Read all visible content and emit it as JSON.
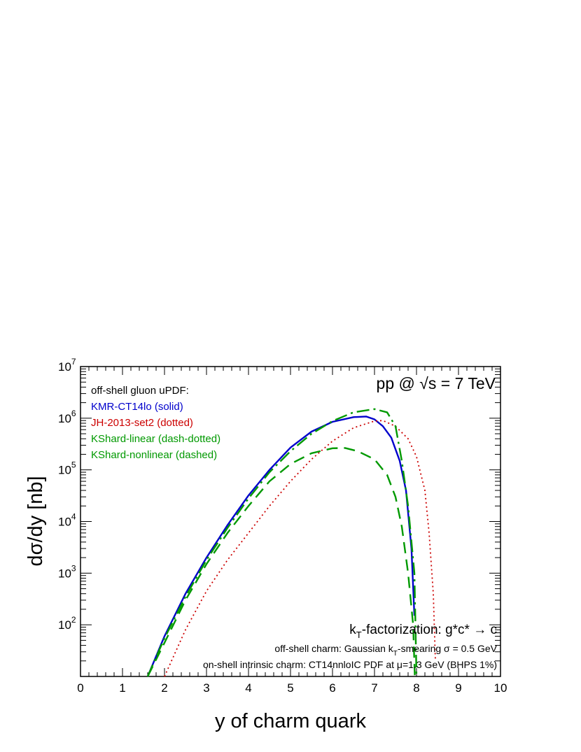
{
  "chart_data": {
    "type": "line",
    "xlabel": "y of charm quark",
    "ylabel": "dσ/dy   [nb]",
    "xlim": [
      0,
      10
    ],
    "ylim": [
      10,
      10000000
    ],
    "y_scale": "log",
    "x_ticks": [
      "0",
      "1",
      "2",
      "3",
      "4",
      "5",
      "6",
      "7",
      "8",
      "9",
      "10"
    ],
    "y_ticks": [
      {
        "base": "10",
        "exp": "2",
        "value": 100
      },
      {
        "base": "10",
        "exp": "3",
        "value": 1000
      },
      {
        "base": "10",
        "exp": "4",
        "value": 10000
      },
      {
        "base": "10",
        "exp": "5",
        "value": 100000
      },
      {
        "base": "10",
        "exp": "6",
        "value": 1000000
      },
      {
        "base": "10",
        "exp": "7",
        "value": 10000000
      }
    ],
    "legend_title": "off-shell gluon uPDF:",
    "series": [
      {
        "name": "KMR-CT14lo (solid)",
        "color": "#0000cc",
        "dash": "solid",
        "points": [
          [
            1.6,
            10
          ],
          [
            2.0,
            60
          ],
          [
            2.5,
            400
          ],
          [
            3.0,
            2000
          ],
          [
            3.5,
            8500
          ],
          [
            4.0,
            32000
          ],
          [
            4.5,
            100000
          ],
          [
            5.0,
            270000
          ],
          [
            5.5,
            550000
          ],
          [
            6.0,
            850000
          ],
          [
            6.5,
            1050000
          ],
          [
            6.8,
            1080000
          ],
          [
            7.0,
            950000
          ],
          [
            7.2,
            700000
          ],
          [
            7.4,
            420000
          ],
          [
            7.6,
            150000
          ],
          [
            7.75,
            40000
          ],
          [
            7.88,
            3000
          ],
          [
            7.95,
            150
          ]
        ]
      },
      {
        "name": "JH-2013-set2 (dotted)",
        "color": "#cc0000",
        "dash": "dotted",
        "points": [
          [
            2.0,
            10
          ],
          [
            2.5,
            80
          ],
          [
            3.0,
            450
          ],
          [
            3.5,
            1800
          ],
          [
            4.0,
            6000
          ],
          [
            4.5,
            20000
          ],
          [
            5.0,
            60000
          ],
          [
            5.5,
            160000
          ],
          [
            6.0,
            360000
          ],
          [
            6.5,
            650000
          ],
          [
            7.0,
            880000
          ],
          [
            7.2,
            900000
          ],
          [
            7.5,
            700000
          ],
          [
            7.8,
            400000
          ],
          [
            8.0,
            180000
          ],
          [
            8.2,
            40000
          ],
          [
            8.3,
            6000
          ],
          [
            8.4,
            400
          ],
          [
            8.45,
            20
          ]
        ]
      },
      {
        "name": "KShard-linear (dash-dotted)",
        "color": "#009900",
        "dash": "dashdot",
        "points": [
          [
            1.6,
            10
          ],
          [
            2.0,
            55
          ],
          [
            2.5,
            350
          ],
          [
            3.0,
            1800
          ],
          [
            3.5,
            7500
          ],
          [
            4.0,
            28000
          ],
          [
            4.5,
            90000
          ],
          [
            5.0,
            230000
          ],
          [
            5.5,
            500000
          ],
          [
            6.0,
            880000
          ],
          [
            6.5,
            1300000
          ],
          [
            7.0,
            1500000
          ],
          [
            7.3,
            1300000
          ],
          [
            7.5,
            700000
          ],
          [
            7.65,
            150000
          ],
          [
            7.8,
            20000
          ],
          [
            7.95,
            1000
          ],
          [
            8.0,
            10
          ]
        ]
      },
      {
        "name": "KShard-nonlinear (dashed)",
        "color": "#009900",
        "dash": "dashed",
        "points": [
          [
            1.6,
            10
          ],
          [
            2.0,
            45
          ],
          [
            2.5,
            300
          ],
          [
            3.0,
            1500
          ],
          [
            3.5,
            6000
          ],
          [
            4.0,
            20000
          ],
          [
            4.5,
            60000
          ],
          [
            5.0,
            130000
          ],
          [
            5.5,
            210000
          ],
          [
            6.0,
            262000
          ],
          [
            6.3,
            265000
          ],
          [
            6.6,
            230000
          ],
          [
            7.0,
            160000
          ],
          [
            7.3,
            80000
          ],
          [
            7.5,
            30000
          ],
          [
            7.65,
            8000
          ],
          [
            7.8,
            1000
          ],
          [
            7.92,
            100
          ],
          [
            7.96,
            10
          ]
        ]
      }
    ],
    "annotations": {
      "top_right": "pp @ √s = 7 TeV",
      "bottom_line1": {
        "pre": "k",
        "sub": "T",
        "post": "-factorization: g*c* → c"
      },
      "bottom_line2": {
        "pre": "off-shell charm: Gaussian k",
        "sub": "T",
        "post": "-smearing σ = 0.5 GeV"
      },
      "bottom_line3": "on-shell intrinsic charm: CT14nnloIC PDF at μ=1.3 GeV (BHPS 1%)"
    }
  }
}
